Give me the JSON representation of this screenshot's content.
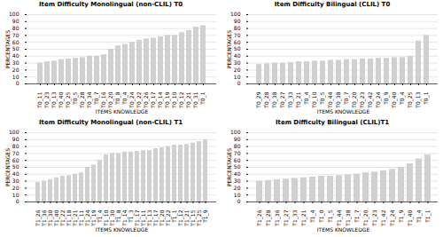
{
  "chart_data": [
    {
      "type": "bar",
      "title": "Item Difficulty Monolingual (non-CLIL) T0",
      "categories": [
        "T0_11",
        "T0_23",
        "T0_13",
        "T0_40",
        "T0_25",
        "T0_5",
        "T0_28",
        "T0_34",
        "T0_7",
        "T0_16",
        "T0_20",
        "T0_8",
        "T0_4",
        "T0_24",
        "T0_22",
        "T0_26",
        "T0_17",
        "T0_14",
        "T0_19",
        "T0_10",
        "T0_12",
        "T0_21",
        "T0_31",
        "T0_1"
      ],
      "values": [
        30,
        32,
        33,
        35,
        36,
        37,
        38,
        40,
        40,
        42,
        50,
        55,
        57,
        60,
        63,
        65,
        66,
        68,
        70,
        70,
        74,
        77,
        82,
        84
      ],
      "color": "#d0d0d0",
      "xlabel": "ITEMS KNOWLEDGE",
      "ylabel": "PERCENTAGES",
      "ylim": [
        0,
        100
      ],
      "yticks": [
        0,
        10,
        20,
        30,
        40,
        50,
        60,
        70,
        80,
        90,
        100
      ],
      "grid": true
    },
    {
      "type": "bar",
      "title": "Item Difficulty Bilingual (CLIL) T0",
      "categories": [
        "T0_29",
        "T0_28",
        "T0_38",
        "T0_27",
        "T0_33",
        "T0_21",
        "T0_4",
        "T0_10",
        "T0_5",
        "T0_44",
        "T0_38",
        "T0_7",
        "T0_20",
        "T0_23",
        "T0_42",
        "T0_24",
        "T0_9",
        "T0_40",
        "T0_4",
        "T0_25",
        "T0_13",
        "T0_1"
      ],
      "values": [
        28,
        29,
        30,
        30,
        31,
        32,
        32,
        33,
        33,
        34,
        34,
        35,
        35,
        36,
        36,
        37,
        37,
        38,
        38,
        40,
        62,
        70
      ],
      "color": "#d0d0d0",
      "xlabel": "ITEMS KNOWLEDGE",
      "ylabel": "PERCENTAGES",
      "ylim": [
        0,
        100
      ],
      "yticks": [
        0,
        10,
        20,
        30,
        40,
        50,
        60,
        70,
        80,
        90,
        100
      ],
      "grid": true
    },
    {
      "type": "bar",
      "title": "Item Difficulty Monolingual (non-CLIL) T1",
      "categories": [
        "T1_26",
        "T1_36",
        "T1_30",
        "T1_40",
        "T1_22",
        "T1_18",
        "T1_21",
        "T1_11",
        "T1_24",
        "T1_19",
        "T1_4",
        "T1_10",
        "T1_30",
        "T1_8",
        "T1_14",
        "T1_3",
        "T1_17",
        "T1_11",
        "T1_13",
        "T1_17",
        "T1_20",
        "T1_22",
        "T1_1",
        "T1_12",
        "T1_21",
        "T1_15",
        "T1_25",
        "T1_9"
      ],
      "values": [
        28,
        30,
        32,
        35,
        37,
        38,
        40,
        42,
        50,
        53,
        60,
        68,
        70,
        70,
        72,
        72,
        73,
        74,
        74,
        77,
        78,
        80,
        82,
        82,
        83,
        85,
        87,
        90
      ],
      "color": "#d0d0d0",
      "xlabel": "ITEMS KNOWLEDGE",
      "ylabel": "PERCENTAGES",
      "ylim": [
        0,
        100
      ],
      "yticks": [
        0,
        10,
        20,
        30,
        40,
        50,
        60,
        70,
        80,
        90,
        100
      ],
      "grid": true
    },
    {
      "type": "bar",
      "title": "Item Difficulty Bilingual (CLIL)T1",
      "categories": [
        "T1_26",
        "T1_28",
        "T1_36",
        "T1_27",
        "T1_33",
        "T1_21",
        "T1_4",
        "T1_0",
        "T1_5",
        "T1_44",
        "T1_38",
        "T1_7",
        "T1_20",
        "T1_23",
        "T1_42",
        "T1_24",
        "T1_9",
        "T1_40",
        "T1_4",
        "T1_1"
      ],
      "values": [
        30,
        31,
        32,
        33,
        34,
        35,
        36,
        37,
        37,
        38,
        39,
        40,
        42,
        43,
        45,
        47,
        50,
        55,
        62,
        68
      ],
      "color": "#d0d0d0",
      "xlabel": "ITEMS KNOWLEDGE",
      "ylabel": "PERCENTAGES",
      "ylim": [
        0,
        100
      ],
      "yticks": [
        0,
        10,
        20,
        30,
        40,
        50,
        60,
        70,
        80,
        90,
        100
      ],
      "grid": true
    }
  ]
}
